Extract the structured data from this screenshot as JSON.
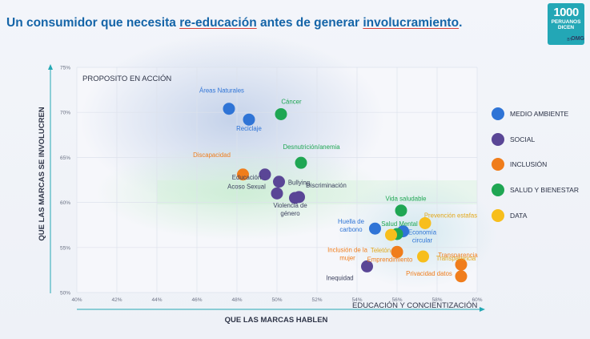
{
  "headline": {
    "part1": "Un consumidor que necesita ",
    "part2": "re-educación",
    "part3": " antes de generar ",
    "part4": "involucramiento",
    "part5": "."
  },
  "logo": {
    "number": "1000",
    "line1": "PERUANOS",
    "line2": "DICEN",
    "by": "BY",
    "brand": "OMG"
  },
  "chart_data": {
    "type": "scatter",
    "title": "PROPOSITO EN ACCIÓN",
    "xlabel": "QUE LAS MARCAS HABLEN",
    "x_axis_corner_label": "EDUCACIÓN Y CONCIENTIZACIÓN",
    "ylabel": "QUE LAS MARCAS SE INVOLUCREN",
    "xlim": [
      0.4,
      0.6
    ],
    "ylim": [
      0.5,
      0.75
    ],
    "x_ticks": [
      "40%",
      "42%",
      "44%",
      "46%",
      "48%",
      "50%",
      "52%",
      "54%",
      "56%",
      "58%",
      "60%"
    ],
    "y_ticks": [
      "50%",
      "55%",
      "60%",
      "65%",
      "70%",
      "75%"
    ],
    "grid": true,
    "legend_position": "right",
    "series": [
      {
        "name": "MEDIO AMBIENTE",
        "color": "#2f74d6",
        "points": [
          {
            "label": "Áreas Naturales",
            "x": 0.476,
            "y": 0.704
          },
          {
            "label": "Reciclaje",
            "x": 0.486,
            "y": 0.692
          },
          {
            "label": "Huella de carbono",
            "x": 0.549,
            "y": 0.571
          },
          {
            "label": "Economía circular",
            "x": 0.563,
            "y": 0.568
          }
        ]
      },
      {
        "name": "SOCIAL",
        "color": "#5a4696",
        "points": [
          {
            "label": "Educación",
            "x": 0.494,
            "y": 0.631
          },
          {
            "label": "Bullying",
            "x": 0.501,
            "y": 0.623
          },
          {
            "label": "Acoso Sexual",
            "x": 0.5,
            "y": 0.61
          },
          {
            "label": "Violencia de género",
            "x": 0.509,
            "y": 0.605
          },
          {
            "label": "Discriminación",
            "x": 0.511,
            "y": 0.606
          },
          {
            "label": "Inequidad",
            "x": 0.545,
            "y": 0.529
          }
        ]
      },
      {
        "name": "INCLUSIÓN",
        "color": "#f07d1c",
        "points": [
          {
            "label": "Discapacidad",
            "x": 0.483,
            "y": 0.631
          },
          {
            "label": "Inclusión de la mujer",
            "x": 0.56,
            "y": 0.545
          },
          {
            "label": "Emprendimiento",
            "x": 0.56,
            "y": 0.545
          },
          {
            "label": "Transparencia",
            "x": 0.592,
            "y": 0.531
          },
          {
            "label": "Privacidad datos",
            "x": 0.592,
            "y": 0.518
          }
        ]
      },
      {
        "name": "SALUD Y BIENESTAR",
        "color": "#1fa653",
        "points": [
          {
            "label": "Cáncer",
            "x": 0.502,
            "y": 0.698
          },
          {
            "label": "Desnutrición/anemia",
            "x": 0.512,
            "y": 0.644
          },
          {
            "label": "Vida saludable",
            "x": 0.562,
            "y": 0.591
          },
          {
            "label": "Salud Mental",
            "x": 0.56,
            "y": 0.565
          }
        ]
      },
      {
        "name": "DATA",
        "color": "#f7be1c",
        "points": [
          {
            "label": "Prevención estafas",
            "x": 0.574,
            "y": 0.577
          },
          {
            "label": "Teletón",
            "x": 0.557,
            "y": 0.564
          },
          {
            "label": "Transparencia",
            "x": 0.573,
            "y": 0.54
          }
        ]
      }
    ]
  }
}
